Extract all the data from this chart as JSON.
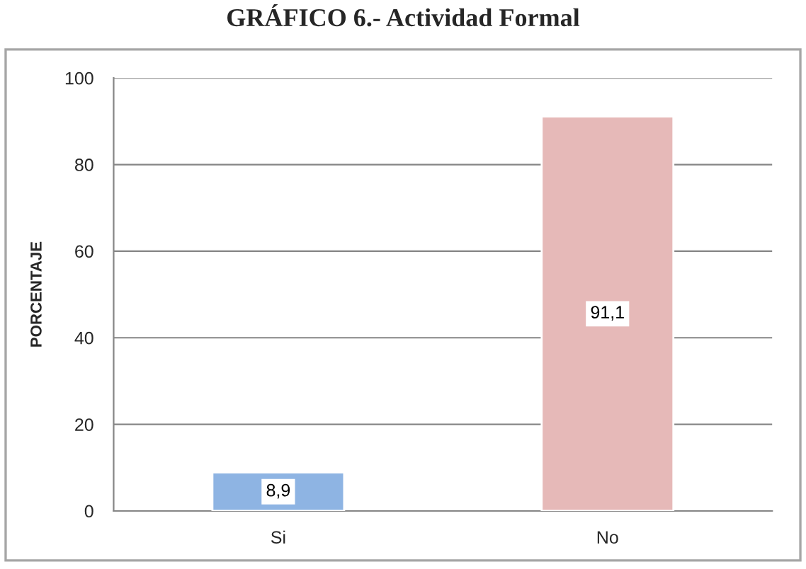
{
  "chart_data": {
    "type": "bar",
    "title": "GRÁFICO 6.- Actividad Formal",
    "ylabel": "PORCENTAJE",
    "categories": [
      "Si",
      "No"
    ],
    "values": [
      8.9,
      91.1
    ],
    "colors": [
      "#8eb4e3",
      "#e6b9b8"
    ],
    "value_labels": [
      "8,9",
      "91,1"
    ],
    "ylim": [
      0,
      100
    ],
    "yticks": [
      0,
      20,
      40,
      60,
      80,
      100
    ],
    "grid": "y",
    "legend": false
  }
}
